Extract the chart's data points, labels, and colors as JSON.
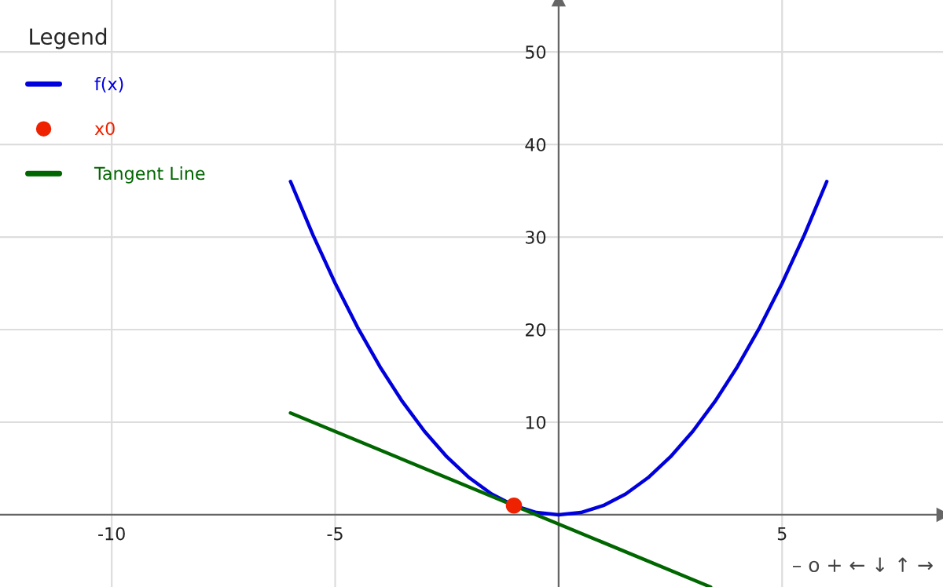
{
  "chart_data": {
    "type": "line",
    "legend_title": "Legend",
    "legend": "top left",
    "grid": true,
    "xlim": [
      -12.5,
      8.6
    ],
    "ylim": [
      -7.8,
      55.6
    ],
    "xticks": [
      -10,
      -5,
      5
    ],
    "yticks": [
      10,
      20,
      30,
      40,
      50
    ],
    "annotations": [
      "– o + ← ↓ ↑ →"
    ],
    "series": [
      {
        "name": "f(x)",
        "color": "#0000dd",
        "x": [
          -6,
          -5.5,
          -5,
          -4.5,
          -4,
          -3.5,
          -3,
          -2.5,
          -2,
          -1.5,
          -1,
          -0.5,
          0,
          0.5,
          1,
          1.5,
          2,
          2.5,
          3,
          3.5,
          4,
          4.5,
          5,
          5.5,
          6
        ],
        "values": [
          36,
          30.25,
          25,
          20.25,
          16,
          12.25,
          9,
          6.25,
          4,
          2.25,
          1,
          0.25,
          0,
          0.25,
          1,
          2.25,
          4,
          6.25,
          9,
          12.25,
          16,
          20.25,
          25,
          30.25,
          36
        ]
      },
      {
        "name": "x0",
        "type": "scatter",
        "color": "#ee2200",
        "x": [
          -1
        ],
        "values": [
          1
        ]
      },
      {
        "name": "Tangent Line",
        "color": "#006600",
        "x": [
          -6,
          3.4
        ],
        "values": [
          11,
          -7.8
        ]
      }
    ]
  }
}
